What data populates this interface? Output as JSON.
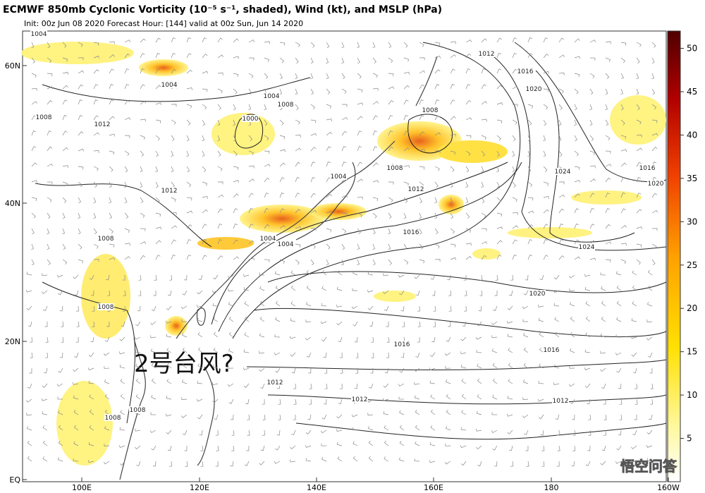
{
  "header": {
    "title": "ECMWF 850mb Cyclonic Vorticity (10⁻⁵ s⁻¹, shaded), Wind (kt), and MSLP (hPa)",
    "subtitle": "Init: 00z Jun 08 2020   Forecast Hour: [144]   valid at 00z Sun, Jun 14 2020"
  },
  "axes": {
    "lat": [
      "60N",
      "40N",
      "20N",
      "EQ"
    ],
    "lon": [
      "100E",
      "120E",
      "140E",
      "160E",
      "180",
      "160W"
    ]
  },
  "colorbar": {
    "ticks": [
      5,
      10,
      15,
      20,
      25,
      30,
      35,
      40,
      45,
      50
    ],
    "range": [
      0,
      52
    ]
  },
  "contour_labels": [
    "1004",
    "1008",
    "1004",
    "1004",
    "1000",
    "1008",
    "1012",
    "1008",
    "1012",
    "1004",
    "1008",
    "1012",
    "1016",
    "1008",
    "1012",
    "1016",
    "1020",
    "1024",
    "1016",
    "1020",
    "1024",
    "1020",
    "1016",
    "1016",
    "1012",
    "1012",
    "1012",
    "1008",
    "1008",
    "1008",
    "1004",
    "1004"
  ],
  "annotation": "2号台风?",
  "watermark": "悟空问答"
}
